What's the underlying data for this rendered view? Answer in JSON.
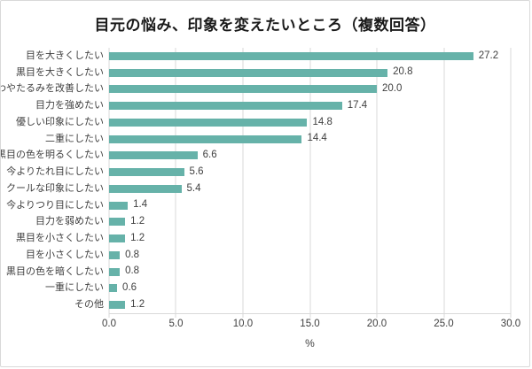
{
  "frame": {
    "background": "#ffffff",
    "border_color": "#d9d9d9"
  },
  "chart_data": {
    "type": "bar",
    "orientation": "horizontal",
    "title": "目元の悩み、印象を変えたいところ（複数回答）",
    "categories": [
      "目を大きくしたい",
      "黒目を大きくしたい",
      "しわやたるみを改善したい",
      "目力を強めたい",
      "優しい印象にしたい",
      "二重にしたい",
      "黒目の色を明るくしたい",
      "今よりたれ目にしたい",
      "クールな印象にしたい",
      "今よりつり目にしたい",
      "目力を弱めたい",
      "黒目を小さくしたい",
      "目を小さくしたい",
      "黒目の色を暗くしたい",
      "一重にしたい",
      "その他"
    ],
    "values": [
      27.2,
      20.8,
      20.0,
      17.4,
      14.8,
      14.4,
      6.6,
      5.6,
      5.4,
      1.4,
      1.2,
      1.2,
      0.8,
      0.8,
      0.6,
      1.2
    ],
    "value_labels": [
      "27.2",
      "20.8",
      "20.0",
      "17.4",
      "14.8",
      "14.4",
      "6.6",
      "5.6",
      "5.4",
      "1.4",
      "1.2",
      "1.2",
      "0.8",
      "0.8",
      "0.6",
      "1.2"
    ],
    "xlabel": "%",
    "xlim": [
      0,
      30
    ],
    "xticks": [
      "0.0",
      "5.0",
      "10.0",
      "15.0",
      "20.0",
      "25.0",
      "30.0"
    ],
    "grid": true,
    "legend": false,
    "value_labels_shown": true,
    "bar_color": "#66b2a9",
    "grid_color": "#d9d9d9",
    "text_color": "#404040",
    "title_color": "#1a1a1a"
  }
}
